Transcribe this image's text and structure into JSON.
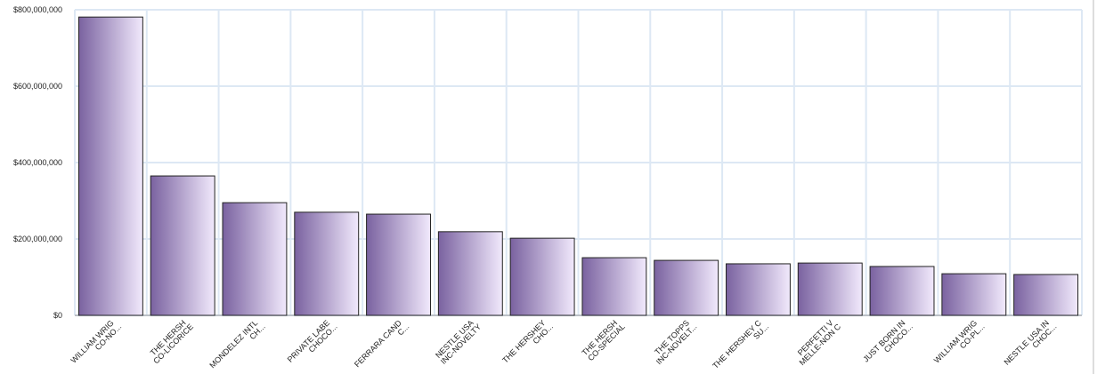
{
  "chart_data": {
    "type": "bar",
    "categories": [
      [
        "WILLIAM WRIG",
        "CO-NO..."
      ],
      [
        "THE HERSH",
        "CO-LICORICE"
      ],
      [
        "MONDELEZ INTL",
        "CH..."
      ],
      [
        "PRIVATE LABE",
        "CHOCO..."
      ],
      [
        "FERRARA CAND",
        "C..."
      ],
      [
        "NESTLE USA",
        "INC-NOVELTY"
      ],
      [
        "THE HERSHEY",
        "CHO..."
      ],
      [
        "THE HERSH",
        "CO-SPECIAL"
      ],
      [
        "THE TOPPS",
        "INC-NOVELT..."
      ],
      [
        "THE HERSHEY C",
        "SU..."
      ],
      [
        "PERFETTI V",
        "MELLE-NON C"
      ],
      [
        "JUST BORN IN",
        "CHOCO..."
      ],
      [
        "WILLIAM WRIG",
        "CO-PL..."
      ],
      [
        "NESTLE USA IN",
        "CHOC..."
      ]
    ],
    "values": [
      781000000,
      365000000,
      295000000,
      270000000,
      265000000,
      219000000,
      202000000,
      151000000,
      144000000,
      135000000,
      137000000,
      128000000,
      109000000,
      107000000
    ],
    "color": [
      "#7a62a0",
      "#f1e9fc"
    ],
    "ylim": [
      0,
      800000000
    ],
    "yticks": [
      {
        "value": 0,
        "label": "$0"
      },
      {
        "value": 200000000,
        "label": "$200,000,000"
      },
      {
        "value": 400000000,
        "label": "$400,000,000"
      },
      {
        "value": 600000000,
        "label": "$600,000,000"
      },
      {
        "value": 800000000,
        "label": "$800,000,000"
      }
    ],
    "grid": true
  }
}
